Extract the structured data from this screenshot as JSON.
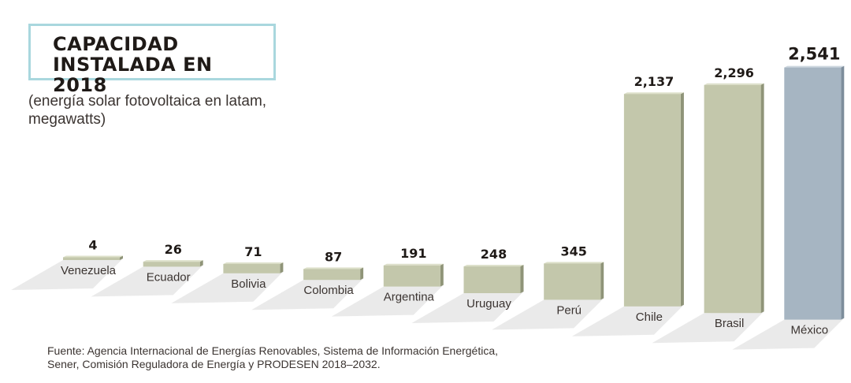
{
  "title": {
    "line1": "CAPACIDAD",
    "line2": "INSTALADA EN 2018"
  },
  "subtitle": {
    "line1": "(energía solar fotovoltaica en latam,",
    "line2": "megawatts)"
  },
  "source": {
    "line1": "Fuente: Agencia Internacional de Energías Renovables, Sistema de Información Energética,",
    "line2": "Sener, Comisión Reguladora de Energía y PRODESEN 2018–2032."
  },
  "colors": {
    "bar": "#c3c7ab",
    "bar_highlight": "#a6b5c2",
    "title_border": "#a9d7de",
    "shadow": "#d9d9d9"
  },
  "chart_data": {
    "type": "bar",
    "categories": [
      "Venezuela",
      "Ecuador",
      "Bolivia",
      "Colombia",
      "Argentina",
      "Uruguay",
      "Perú",
      "Chile",
      "Brasil",
      "México"
    ],
    "values": [
      4,
      26,
      71,
      87,
      191,
      248,
      345,
      2137,
      2296,
      2541
    ],
    "value_labels": [
      "4",
      "26",
      "71",
      "87",
      "191",
      "248",
      "345",
      "2,137",
      "2,296",
      "2,541"
    ],
    "highlight": "México",
    "ylim": [
      0,
      2541
    ]
  }
}
